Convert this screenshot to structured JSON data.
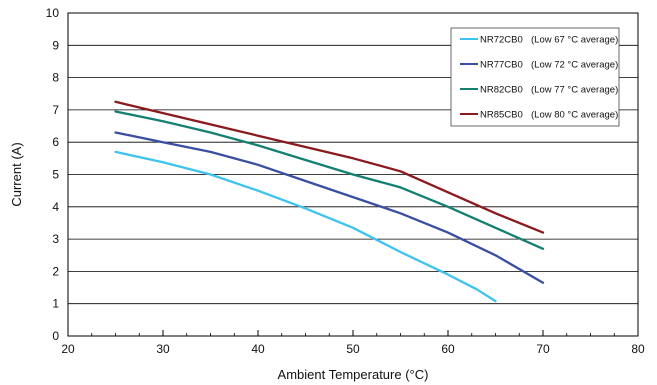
{
  "chart_data": {
    "type": "line",
    "title": "",
    "xlabel": "Ambient Temperature (°C)",
    "ylabel": "Current (A)",
    "xlim": [
      20,
      80
    ],
    "ylim": [
      0,
      10
    ],
    "x_ticks": [
      20,
      30,
      40,
      50,
      60,
      70,
      80
    ],
    "y_ticks": [
      0,
      1,
      2,
      3,
      4,
      5,
      6,
      7,
      8,
      9,
      10
    ],
    "grid": "horizontal",
    "legend_position": "top-right",
    "series": [
      {
        "name": "NR72CB0",
        "note": "(Low 67 °C average)",
        "color": "#3ec3ee",
        "points": [
          [
            25,
            5.7
          ],
          [
            30,
            5.38
          ],
          [
            35,
            5.0
          ],
          [
            40,
            4.5
          ],
          [
            45,
            3.95
          ],
          [
            50,
            3.35
          ],
          [
            55,
            2.6
          ],
          [
            60,
            1.9
          ],
          [
            63,
            1.45
          ],
          [
            65,
            1.08
          ]
        ]
      },
      {
        "name": "NR77CB0",
        "note": "(Low 72 °C average)",
        "color": "#3a4fa0",
        "points": [
          [
            25,
            6.3
          ],
          [
            30,
            6.0
          ],
          [
            35,
            5.7
          ],
          [
            40,
            5.3
          ],
          [
            45,
            4.8
          ],
          [
            50,
            4.3
          ],
          [
            55,
            3.8
          ],
          [
            60,
            3.2
          ],
          [
            65,
            2.5
          ],
          [
            70,
            1.65
          ]
        ]
      },
      {
        "name": "NR82CB0",
        "note": "(Low 77 °C average)",
        "color": "#148073",
        "points": [
          [
            25,
            6.95
          ],
          [
            30,
            6.65
          ],
          [
            35,
            6.3
          ],
          [
            40,
            5.9
          ],
          [
            45,
            5.45
          ],
          [
            50,
            5.0
          ],
          [
            55,
            4.6
          ],
          [
            60,
            4.0
          ],
          [
            65,
            3.35
          ],
          [
            70,
            2.7
          ]
        ]
      },
      {
        "name": "NR85CB0",
        "note": "(Low 80 °C average)",
        "color": "#8b1a1e",
        "points": [
          [
            25,
            7.25
          ],
          [
            30,
            6.9
          ],
          [
            35,
            6.55
          ],
          [
            40,
            6.2
          ],
          [
            45,
            5.85
          ],
          [
            50,
            5.5
          ],
          [
            55,
            5.1
          ],
          [
            60,
            4.45
          ],
          [
            65,
            3.8
          ],
          [
            70,
            3.2
          ]
        ]
      }
    ]
  }
}
